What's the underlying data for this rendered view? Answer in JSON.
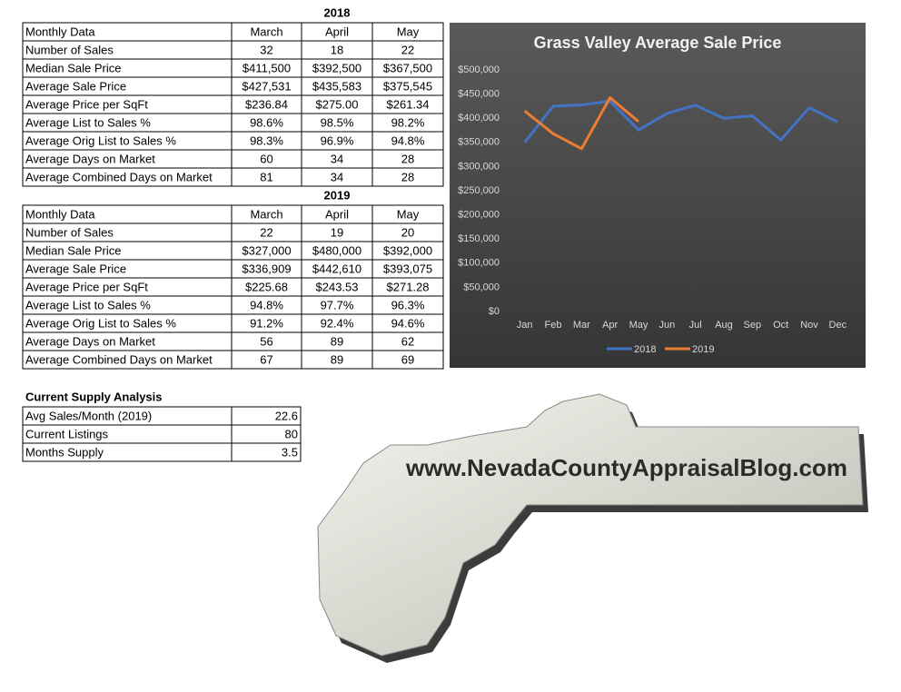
{
  "tables": [
    {
      "title": "2018",
      "header": [
        "Monthly Data",
        "March",
        "April",
        "May"
      ],
      "rows": [
        [
          "Number of Sales",
          "32",
          "18",
          "22"
        ],
        [
          "Median Sale Price",
          "$411,500",
          "$392,500",
          "$367,500"
        ],
        [
          "Average Sale Price",
          "$427,531",
          "$435,583",
          "$375,545"
        ],
        [
          "Average Price per SqFt",
          "$236.84",
          "$275.00",
          "$261.34"
        ],
        [
          "Average List to Sales %",
          "98.6%",
          "98.5%",
          "98.2%"
        ],
        [
          "Average Orig List to Sales %",
          "98.3%",
          "96.9%",
          "94.8%"
        ],
        [
          "Average Days on Market",
          "60",
          "34",
          "28"
        ],
        [
          "Average Combined Days on Market",
          "81",
          "34",
          "28"
        ]
      ]
    },
    {
      "title": "2019",
      "header": [
        "Monthly Data",
        "March",
        "April",
        "May"
      ],
      "rows": [
        [
          "Number of Sales",
          "22",
          "19",
          "20"
        ],
        [
          "Median Sale Price",
          "$327,000",
          "$480,000",
          "$392,000"
        ],
        [
          "Average Sale Price",
          "$336,909",
          "$442,610",
          "$393,075"
        ],
        [
          "Average Price per SqFt",
          "$225.68",
          "$243.53",
          "$271.28"
        ],
        [
          "Average List to Sales %",
          "94.8%",
          "97.7%",
          "96.3%"
        ],
        [
          "Average Orig List to Sales %",
          "91.2%",
          "92.4%",
          "94.6%"
        ],
        [
          "Average Days on Market",
          "56",
          "89",
          "62"
        ],
        [
          "Average Combined Days on Market",
          "67",
          "89",
          "69"
        ]
      ]
    }
  ],
  "supply": {
    "title": "Current Supply Analysis",
    "rows": [
      [
        "Avg Sales/Month (2019)",
        "22.6"
      ],
      [
        "Current Listings",
        "80"
      ],
      [
        "Months Supply",
        "3.5"
      ]
    ]
  },
  "chart_data": {
    "type": "line",
    "title": "Grass Valley Average Sale Price",
    "categories": [
      "Jan",
      "Feb",
      "Mar",
      "Apr",
      "May",
      "Jun",
      "Jul",
      "Aug",
      "Sep",
      "Oct",
      "Nov",
      "Dec"
    ],
    "series": [
      {
        "name": "2018",
        "color": "#4472c4",
        "values": [
          350000,
          425000,
          427531,
          435583,
          375545,
          410000,
          427000,
          400000,
          405000,
          355000,
          422000,
          392000
        ]
      },
      {
        "name": "2019",
        "color": "#ed7d31",
        "values": [
          415000,
          368000,
          336909,
          442610,
          393075,
          null,
          null,
          null,
          null,
          null,
          null,
          null
        ]
      }
    ],
    "ylim": [
      0,
      500000
    ],
    "yticks": [
      {
        "value": 0,
        "label": "$0"
      },
      {
        "value": 50000,
        "label": "$50,000"
      },
      {
        "value": 100000,
        "label": "$100,000"
      },
      {
        "value": 150000,
        "label": "$150,000"
      },
      {
        "value": 200000,
        "label": "$200,000"
      },
      {
        "value": 250000,
        "label": "$250,000"
      },
      {
        "value": 300000,
        "label": "$300,000"
      },
      {
        "value": 350000,
        "label": "$350,000"
      },
      {
        "value": 400000,
        "label": "$400,000"
      },
      {
        "value": 450000,
        "label": "$450,000"
      },
      {
        "value": 500000,
        "label": "$500,000"
      }
    ],
    "grid": false,
    "legend": "bottom"
  },
  "logo": {
    "text": "www.NevadaCountyAppraisalBlog.com"
  }
}
